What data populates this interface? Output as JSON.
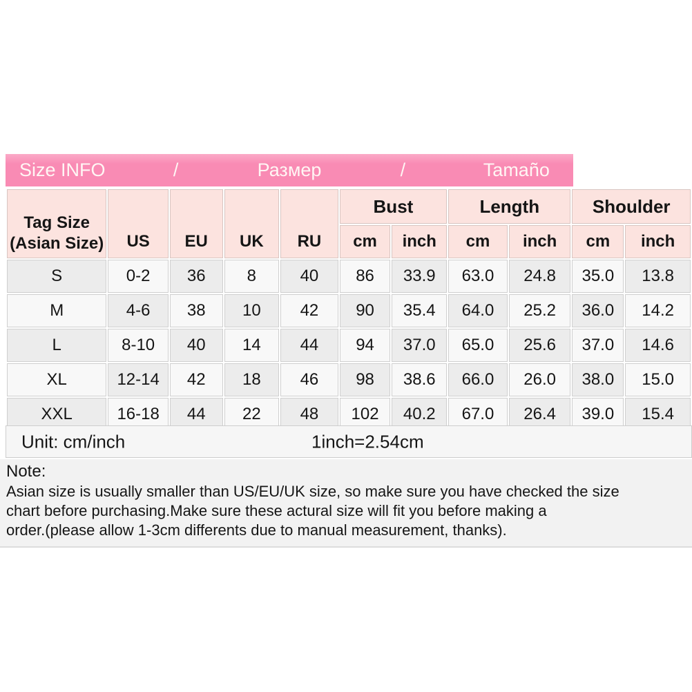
{
  "title_bar": {
    "segments": [
      "Size INFO",
      "/",
      "Размер",
      "/",
      "Tamaño"
    ]
  },
  "table": {
    "corner": [
      "Tag Size",
      "(Asian Size)"
    ],
    "size_columns": [
      "US",
      "EU",
      "UK",
      "RU"
    ],
    "measure_groups": [
      "Bust",
      "Length",
      "Shoulder"
    ],
    "unit_subheaders": [
      "cm",
      "inch"
    ],
    "rows": [
      [
        "S",
        "0-2",
        "36",
        "8",
        "40",
        "86",
        "33.9",
        "63.0",
        "24.8",
        "35.0",
        "13.8"
      ],
      [
        "M",
        "4-6",
        "38",
        "10",
        "42",
        "90",
        "35.4",
        "64.0",
        "25.2",
        "36.0",
        "14.2"
      ],
      [
        "L",
        "8-10",
        "40",
        "14",
        "44",
        "94",
        "37.0",
        "65.0",
        "25.6",
        "37.0",
        "14.6"
      ],
      [
        "XL",
        "12-14",
        "42",
        "18",
        "46",
        "98",
        "38.6",
        "66.0",
        "26.0",
        "38.0",
        "15.0"
      ],
      [
        "XXL",
        "16-18",
        "44",
        "22",
        "48",
        "102",
        "40.2",
        "67.0",
        "26.4",
        "39.0",
        "15.4"
      ]
    ]
  },
  "unit_row": {
    "left": "Unit: cm/inch",
    "right": "1inch=2.54cm"
  },
  "note": {
    "label": "Note:",
    "lines": [
      "Asian size is usually smaller than US/EU/UK size, so make sure you have checked the size",
      "chart before purchasing.Make sure these actural size will fit you before making a",
      "order.(please allow 1-3cm differents due to manual measurement, thanks)."
    ]
  },
  "colors": {
    "title_bar_pink": "#f98bb4",
    "title_bar_pink_light": "#fbaac8",
    "header_pink": "#fce3df",
    "header_border": "#d8c5c1",
    "cell_border": "#cfcfcf",
    "shade_dark": "#ececec",
    "shade_light": "#f8f8f8",
    "unit_bg": "#f6f6f6",
    "note_bg": "#f2f2f2",
    "text": "#151515"
  }
}
